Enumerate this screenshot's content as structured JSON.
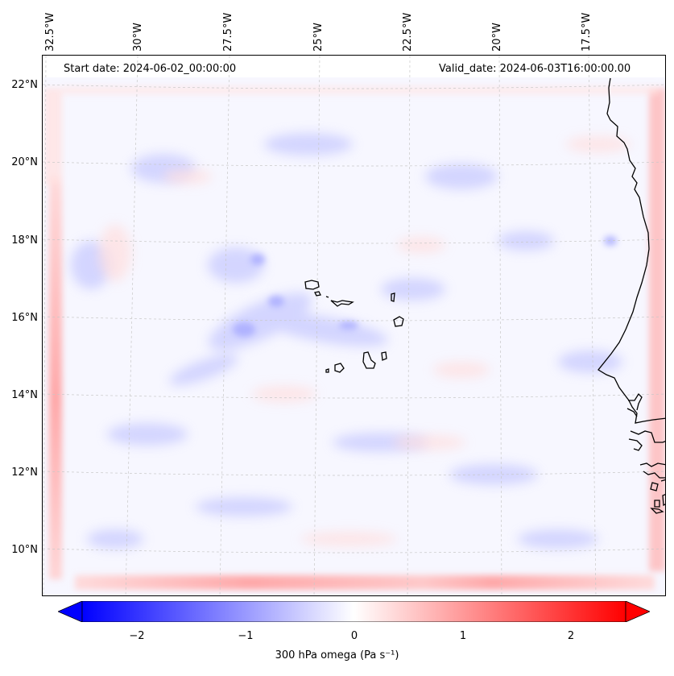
{
  "map": {
    "start_date": "Start date: 2024-06-02_00:00:00",
    "valid_date": "Valid_date: 2024-06-03T16:00:00.00",
    "lon_labels": [
      "32.5°W",
      "30°W",
      "27.5°W",
      "25°W",
      "22.5°W",
      "20°W",
      "17.5°W"
    ],
    "lat_labels": [
      "22°N",
      "20°N",
      "18°N",
      "16°N",
      "14°N",
      "12°N",
      "10°N"
    ],
    "gridlines": true,
    "colormap": "bwr",
    "colors": {
      "negative": "#0000ff",
      "zero": "#ffffff",
      "positive": "#ff0000",
      "coast": "#000000"
    },
    "islands": "Cape Verde",
    "coastline": "West African coast"
  },
  "colorbar": {
    "label": "300 hPa omega (Pa s⁻¹)",
    "ticks": [
      "−2",
      "−1",
      "0",
      "1",
      "2"
    ],
    "range": [
      -2.75,
      2.75
    ],
    "extend": "both"
  }
}
